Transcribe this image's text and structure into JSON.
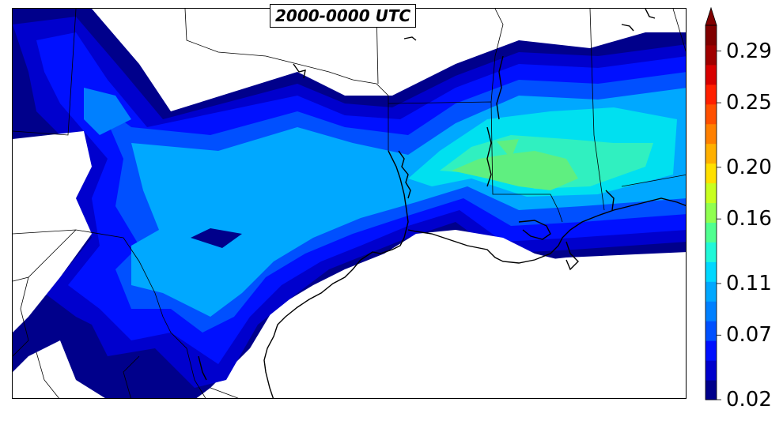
{
  "title": "2000-0000 UTC",
  "colorbar": {
    "ticks": [
      "0.29",
      "0.25",
      "0.20",
      "0.16",
      "0.11",
      "0.07",
      "0.02"
    ],
    "min": 0.02,
    "max": 0.31,
    "extend": "max",
    "colors": [
      "#00008b",
      "#0000cd",
      "#0010ff",
      "#0050ff",
      "#0080ff",
      "#00a8ff",
      "#00d8ff",
      "#20f8d8",
      "#50ff90",
      "#90ff50",
      "#c8ff20",
      "#ffe000",
      "#ffb000",
      "#ff8000",
      "#ff5000",
      "#ff2000",
      "#d80000",
      "#a00000",
      "#800000"
    ]
  },
  "map": {
    "field_colors": {
      "deep": "#00008b",
      "dark": "#0000cd",
      "blue": "#0010ff",
      "mid": "#0050ff",
      "sky": "#0080ff",
      "light": "#00a8ff",
      "cyan": "#00e0f0",
      "aqua": "#30f0c0",
      "green": "#5fef80"
    },
    "coast_color": "#000000",
    "border_color": "#000000"
  }
}
